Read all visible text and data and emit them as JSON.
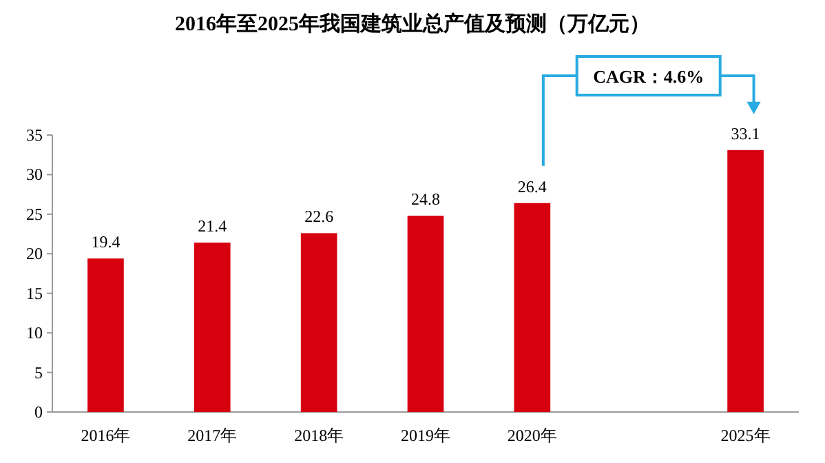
{
  "chart_data": {
    "type": "bar",
    "title": "2016年至2025年我国建筑业总产值及预测（万亿元）",
    "categories": [
      "2016年",
      "2017年",
      "2018年",
      "2019年",
      "2020年",
      null,
      "2025年"
    ],
    "values": [
      19.4,
      21.4,
      22.6,
      24.8,
      26.4,
      null,
      33.1
    ],
    "color": "#d7000f",
    "ylim": [
      0,
      35
    ],
    "yticks": [
      0,
      5,
      10,
      15,
      20,
      25,
      30,
      35
    ],
    "data_labels": true,
    "grid": false,
    "annotations": [
      "CAGR：4.6%"
    ]
  }
}
